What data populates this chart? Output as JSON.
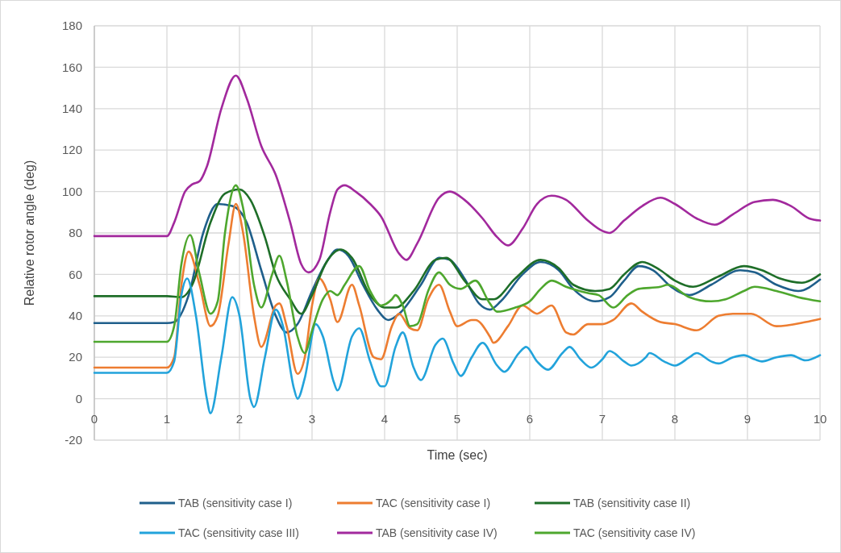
{
  "chart_data": {
    "type": "line",
    "xlabel": "Time (sec)",
    "ylabel": "Relative rotor angle (deg)",
    "xlim": [
      0,
      10
    ],
    "xticks": [
      0,
      1,
      2,
      3,
      4,
      5,
      6,
      7,
      8,
      9,
      10
    ],
    "ylim": [
      -20,
      180
    ],
    "yticks": [
      -20,
      0,
      20,
      40,
      60,
      80,
      100,
      120,
      140,
      160,
      180
    ],
    "grid": true,
    "legend": "bottom",
    "marker": "none",
    "line_style": "solid",
    "series": [
      {
        "name": "TAB (sensitivity case I)",
        "color": "#1f5f8b",
        "x": [
          0,
          1,
          1.1,
          1.3,
          1.5,
          1.7,
          1.9,
          2.1,
          2.3,
          2.5,
          2.65,
          2.8,
          3.0,
          3.2,
          3.35,
          3.5,
          3.7,
          3.9,
          4.05,
          4.2,
          4.5,
          4.75,
          4.9,
          5.1,
          5.3,
          5.45,
          5.6,
          5.9,
          6.15,
          6.4,
          6.6,
          6.9,
          7.1,
          7.3,
          7.5,
          7.7,
          7.95,
          8.2,
          8.5,
          8.9,
          9.1,
          9.4,
          9.7,
          10
        ],
        "values": [
          36.5,
          36.5,
          37,
          50,
          80,
          94,
          93,
          85,
          62,
          40,
          32,
          36,
          52,
          66,
          72,
          69,
          55,
          43,
          38,
          41,
          55,
          68,
          67,
          58,
          46,
          43,
          47,
          60,
          66,
          62,
          53,
          47,
          49,
          57,
          64,
          62,
          54,
          50,
          55,
          62,
          61,
          55,
          52,
          57.5
        ]
      },
      {
        "name": "TAC (sensitivity case I)",
        "color": "#ed7d31",
        "x": [
          0,
          1,
          1.1,
          1.2,
          1.3,
          1.45,
          1.6,
          1.7,
          1.85,
          1.95,
          2.05,
          2.2,
          2.3,
          2.5,
          2.55,
          2.65,
          2.8,
          2.9,
          3.0,
          3.1,
          3.25,
          3.35,
          3.55,
          3.65,
          3.85,
          3.95,
          4.1,
          4.2,
          4.35,
          4.45,
          4.6,
          4.75,
          4.9,
          5.0,
          5.2,
          5.25,
          5.45,
          5.5,
          5.7,
          5.9,
          6.1,
          6.3,
          6.5,
          6.6,
          6.8,
          7.0,
          7.15,
          7.4,
          7.55,
          7.8,
          8.0,
          8.3,
          8.6,
          8.8,
          9.05,
          9.4,
          9.8,
          10
        ],
        "values": [
          15,
          15,
          20,
          55,
          71,
          55,
          35,
          40,
          75,
          94,
          80,
          40,
          25,
          45,
          46,
          35,
          12,
          20,
          45,
          58,
          48,
          37,
          55,
          45,
          20,
          19,
          35,
          41,
          34,
          33,
          48,
          55,
          42,
          35,
          38,
          38,
          30,
          27,
          35,
          45,
          41,
          45,
          32,
          31,
          36,
          36,
          38,
          46,
          42,
          37,
          36,
          33,
          40,
          41,
          41,
          35,
          37,
          38.5
        ]
      },
      {
        "name": "TAB (sensitivity case II)",
        "color": "#1e6e28",
        "x": [
          0,
          1,
          1.2,
          1.35,
          1.6,
          1.8,
          2.0,
          2.15,
          2.35,
          2.5,
          2.7,
          2.85,
          3.0,
          3.2,
          3.4,
          3.55,
          3.8,
          4.0,
          4.15,
          4.4,
          4.7,
          4.85,
          5.1,
          5.35,
          5.5,
          5.8,
          6.15,
          6.4,
          6.6,
          6.9,
          7.1,
          7.3,
          7.55,
          7.8,
          8.0,
          8.25,
          8.6,
          8.95,
          9.2,
          9.45,
          9.75,
          10
        ],
        "values": [
          49.5,
          49.5,
          49,
          55,
          85,
          99,
          101,
          96,
          78,
          60,
          48,
          41,
          50,
          66,
          72,
          68,
          50,
          44,
          44,
          52,
          67,
          68,
          57,
          48,
          48,
          58,
          67,
          63,
          55,
          52,
          53,
          60,
          66,
          62,
          57,
          54,
          59,
          64,
          62,
          58,
          56,
          60
        ]
      },
      {
        "name": "TAC (sensitivity case III)",
        "color": "#22a3db",
        "x": [
          0,
          1,
          1.1,
          1.2,
          1.28,
          1.4,
          1.55,
          1.6,
          1.75,
          1.9,
          2.0,
          2.15,
          2.2,
          2.35,
          2.5,
          2.6,
          2.75,
          2.8,
          2.9,
          3.05,
          3.15,
          3.3,
          3.35,
          3.55,
          3.65,
          3.8,
          3.95,
          4.0,
          4.15,
          4.25,
          4.4,
          4.5,
          4.7,
          4.8,
          4.95,
          5.05,
          5.2,
          5.35,
          5.55,
          5.65,
          5.85,
          5.95,
          6.1,
          6.25,
          6.45,
          6.55,
          6.7,
          6.85,
          7.0,
          7.1,
          7.3,
          7.4,
          7.6,
          7.65,
          7.85,
          8.0,
          8.2,
          8.3,
          8.5,
          8.6,
          8.8,
          8.95,
          9.1,
          9.2,
          9.4,
          9.6,
          9.8,
          10
        ],
        "values": [
          12.5,
          12.5,
          18,
          50,
          58,
          40,
          0,
          -7,
          20,
          49,
          40,
          0,
          -4,
          20,
          43,
          35,
          5,
          0,
          10,
          36,
          30,
          8,
          4,
          30,
          34,
          18,
          6,
          6,
          25,
          32,
          15,
          9,
          26,
          29,
          17,
          11,
          20,
          27,
          16,
          13,
          22,
          25,
          18,
          14,
          22,
          25,
          19,
          15,
          19,
          23,
          18,
          16,
          20,
          22,
          18,
          16,
          20,
          22,
          18,
          17,
          20,
          21,
          19,
          18,
          20,
          21,
          18.5,
          21
        ]
      },
      {
        "name": "TAB (sensitivity case IV)",
        "color": "#a2299d",
        "x": [
          0,
          1,
          1.1,
          1.25,
          1.35,
          1.45,
          1.55,
          1.75,
          1.95,
          2.1,
          2.3,
          2.5,
          2.7,
          2.85,
          2.95,
          3.1,
          3.25,
          3.35,
          3.45,
          3.6,
          3.8,
          3.95,
          4.2,
          4.3,
          4.45,
          4.75,
          4.9,
          5.1,
          5.35,
          5.55,
          5.7,
          5.9,
          6.1,
          6.3,
          6.5,
          6.8,
          7.0,
          7.1,
          7.3,
          7.55,
          7.8,
          8.0,
          8.3,
          8.55,
          8.8,
          9.1,
          9.35,
          9.6,
          9.85,
          10
        ],
        "values": [
          78.5,
          78.5,
          85,
          100,
          103.5,
          105,
          112,
          140,
          156,
          145,
          122,
          108,
          85,
          65,
          61,
          67,
          90,
          101,
          103,
          100,
          94,
          88,
          70,
          67,
          75,
          97,
          100,
          96,
          87,
          78,
          74,
          82,
          94,
          98,
          96,
          86,
          81,
          80,
          86,
          93,
          97,
          94,
          87,
          84,
          89,
          95,
          96,
          93,
          87,
          86
        ]
      },
      {
        "name": "TAC (sensitivity case IV)",
        "color": "#4ea72e",
        "x": [
          0,
          1,
          1.1,
          1.2,
          1.32,
          1.45,
          1.6,
          1.7,
          1.8,
          1.95,
          2.05,
          2.2,
          2.3,
          2.45,
          2.55,
          2.65,
          2.8,
          2.9,
          3.0,
          3.15,
          3.25,
          3.35,
          3.45,
          3.65,
          3.8,
          3.95,
          4.1,
          4.15,
          4.25,
          4.35,
          4.45,
          4.6,
          4.75,
          4.9,
          5.05,
          5.25,
          5.45,
          5.55,
          5.8,
          6.0,
          6.15,
          6.3,
          6.5,
          6.8,
          6.95,
          7.15,
          7.35,
          7.5,
          7.8,
          7.9,
          8.2,
          8.5,
          8.7,
          8.95,
          9.1,
          9.4,
          9.7,
          10
        ],
        "values": [
          27.5,
          27.5,
          35,
          65,
          79,
          60,
          41,
          47,
          80,
          103,
          92,
          55,
          44,
          60,
          69,
          57,
          30,
          22,
          33,
          48,
          52,
          50,
          55,
          64,
          52,
          45,
          48,
          50,
          45,
          35,
          36,
          52,
          61,
          55,
          53,
          57,
          46,
          42,
          44,
          47,
          53,
          57,
          54,
          51,
          50,
          44,
          50,
          53,
          54,
          55,
          49,
          47,
          48,
          52,
          54,
          52,
          49,
          47
        ]
      }
    ]
  }
}
